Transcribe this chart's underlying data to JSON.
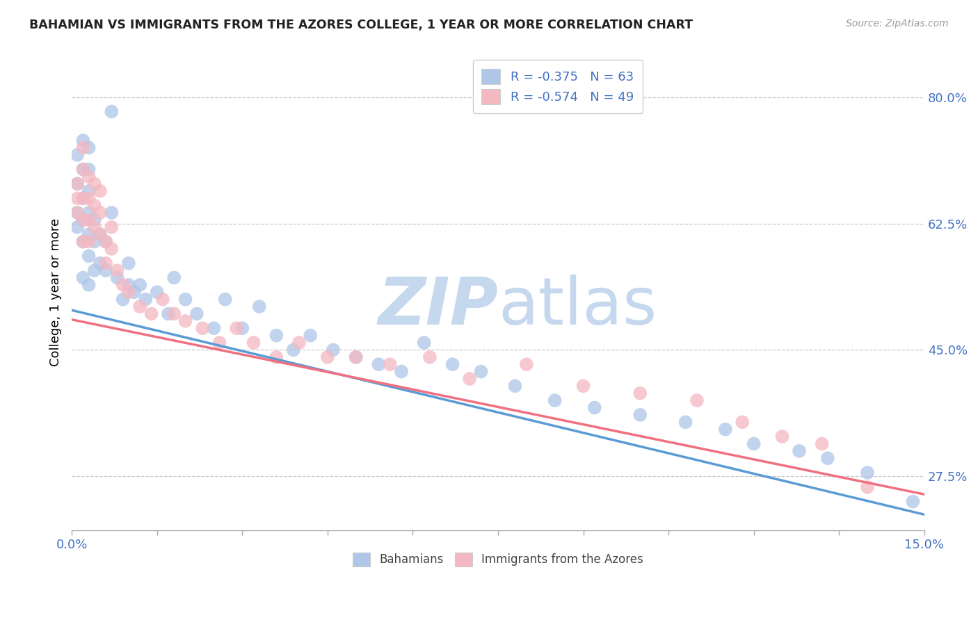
{
  "title": "BAHAMIAN VS IMMIGRANTS FROM THE AZORES COLLEGE, 1 YEAR OR MORE CORRELATION CHART",
  "source_text": "Source: ZipAtlas.com",
  "ylabel": "College, 1 year or more",
  "xlim": [
    0.0,
    0.15
  ],
  "ylim": [
    0.2,
    0.86
  ],
  "xticks": [
    0.0,
    0.015,
    0.03,
    0.045,
    0.06,
    0.075,
    0.09,
    0.105,
    0.12,
    0.135,
    0.15
  ],
  "xtick_labels": [
    "0.0%",
    "",
    "",
    "",
    "",
    "",
    "",
    "",
    "",
    "",
    "15.0%"
  ],
  "ytick_positions": [
    0.275,
    0.45,
    0.625,
    0.8
  ],
  "ytick_labels": [
    "27.5%",
    "45.0%",
    "62.5%",
    "80.0%"
  ],
  "bahamian_R": -0.375,
  "bahamian_N": 63,
  "azores_R": -0.574,
  "azores_N": 49,
  "bahamian_color": "#aec6e8",
  "azores_color": "#f4b8c1",
  "bahamian_line_color": "#5b9bd5",
  "azores_line_color": "#f07080",
  "legend_R_N_color": "#4472c4",
  "watermark_zip": "ZIP",
  "watermark_atlas": "atlas",
  "watermark_color": "#dce9f5",
  "bahamian_x": [
    0.001,
    0.001,
    0.001,
    0.001,
    0.002,
    0.002,
    0.002,
    0.002,
    0.002,
    0.002,
    0.003,
    0.003,
    0.003,
    0.003,
    0.003,
    0.003,
    0.003,
    0.004,
    0.004,
    0.004,
    0.005,
    0.005,
    0.006,
    0.006,
    0.007,
    0.007,
    0.008,
    0.009,
    0.01,
    0.01,
    0.011,
    0.012,
    0.013,
    0.015,
    0.017,
    0.018,
    0.02,
    0.022,
    0.025,
    0.027,
    0.03,
    0.033,
    0.036,
    0.039,
    0.042,
    0.046,
    0.05,
    0.054,
    0.058,
    0.062,
    0.067,
    0.072,
    0.078,
    0.085,
    0.092,
    0.1,
    0.108,
    0.115,
    0.12,
    0.128,
    0.133,
    0.14,
    0.148
  ],
  "bahamian_y": [
    0.62,
    0.64,
    0.68,
    0.72,
    0.55,
    0.6,
    0.63,
    0.66,
    0.7,
    0.74,
    0.54,
    0.58,
    0.61,
    0.64,
    0.67,
    0.7,
    0.73,
    0.56,
    0.6,
    0.63,
    0.57,
    0.61,
    0.56,
    0.6,
    0.78,
    0.64,
    0.55,
    0.52,
    0.54,
    0.57,
    0.53,
    0.54,
    0.52,
    0.53,
    0.5,
    0.55,
    0.52,
    0.5,
    0.48,
    0.52,
    0.48,
    0.51,
    0.47,
    0.45,
    0.47,
    0.45,
    0.44,
    0.43,
    0.42,
    0.46,
    0.43,
    0.42,
    0.4,
    0.38,
    0.37,
    0.36,
    0.35,
    0.34,
    0.32,
    0.31,
    0.3,
    0.28,
    0.24
  ],
  "azores_x": [
    0.001,
    0.001,
    0.001,
    0.002,
    0.002,
    0.002,
    0.002,
    0.002,
    0.003,
    0.003,
    0.003,
    0.003,
    0.004,
    0.004,
    0.004,
    0.005,
    0.005,
    0.005,
    0.006,
    0.006,
    0.007,
    0.007,
    0.008,
    0.009,
    0.01,
    0.012,
    0.014,
    0.016,
    0.018,
    0.02,
    0.023,
    0.026,
    0.029,
    0.032,
    0.036,
    0.04,
    0.045,
    0.05,
    0.056,
    0.063,
    0.07,
    0.08,
    0.09,
    0.1,
    0.11,
    0.118,
    0.125,
    0.132,
    0.14
  ],
  "azores_y": [
    0.64,
    0.66,
    0.68,
    0.6,
    0.63,
    0.66,
    0.7,
    0.73,
    0.6,
    0.63,
    0.66,
    0.69,
    0.62,
    0.65,
    0.68,
    0.61,
    0.64,
    0.67,
    0.57,
    0.6,
    0.59,
    0.62,
    0.56,
    0.54,
    0.53,
    0.51,
    0.5,
    0.52,
    0.5,
    0.49,
    0.48,
    0.46,
    0.48,
    0.46,
    0.44,
    0.46,
    0.44,
    0.44,
    0.43,
    0.44,
    0.41,
    0.43,
    0.4,
    0.39,
    0.38,
    0.35,
    0.33,
    0.32,
    0.26
  ]
}
